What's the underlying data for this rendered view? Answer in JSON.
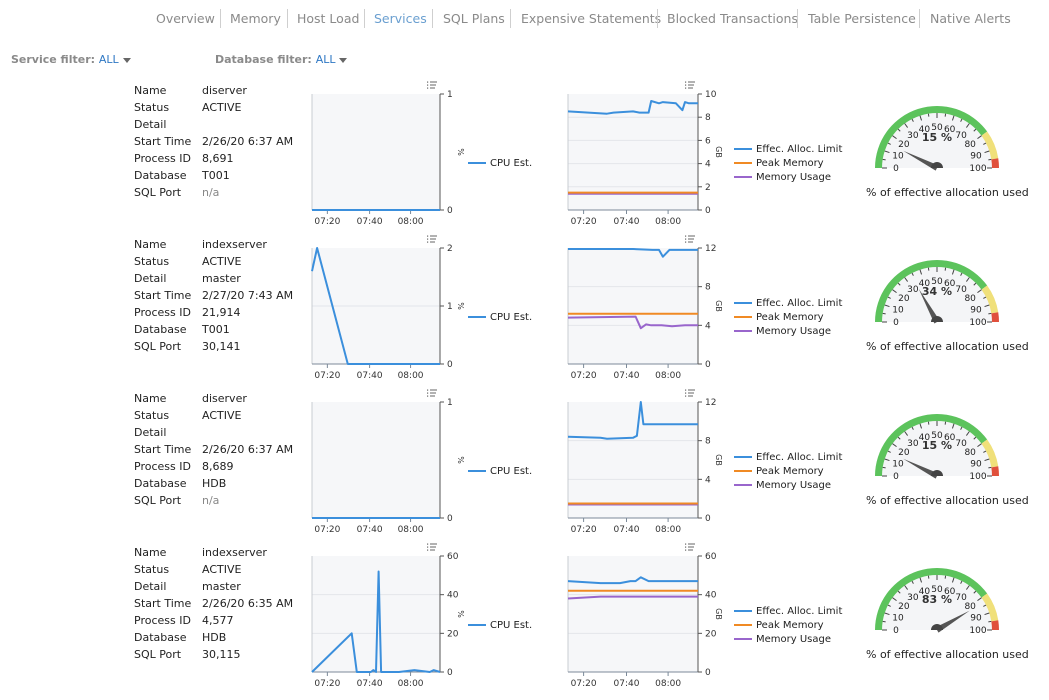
{
  "tabs": [
    {
      "label": "Overview",
      "active": false
    },
    {
      "label": "Memory",
      "active": false
    },
    {
      "label": "Host Load",
      "active": false
    },
    {
      "label": "Services",
      "active": true
    },
    {
      "label": "SQL Plans",
      "active": false
    },
    {
      "label": "Expensive Statements",
      "active": false
    },
    {
      "label": "Blocked Transactions",
      "active": false
    },
    {
      "label": "Table Persistence",
      "active": false
    },
    {
      "label": "Native Alerts",
      "active": false
    }
  ],
  "filters": {
    "service": {
      "label": "Service filter:",
      "value": "ALL"
    },
    "database": {
      "label": "Database filter:",
      "value": "ALL"
    }
  },
  "field_labels": {
    "name": "Name",
    "status": "Status",
    "detail": "Detail",
    "start_time": "Start Time",
    "process_id": "Process ID",
    "database": "Database",
    "sql_port": "SQL Port"
  },
  "legend": {
    "cpu": "CPU Est.",
    "alloc": "Effec. Alloc. Limit",
    "peak": "Peak Memory",
    "usage": "Memory Usage"
  },
  "units": {
    "cpu": "%",
    "mem": "GB"
  },
  "gauge_caption": "% of effective allocation used",
  "colors": {
    "cpu_line": "#3b8fdc",
    "alloc_line": "#3b8fdc",
    "peak_line": "#f08a24",
    "usage_line": "#9966cc",
    "gauge_green": "#5cc35c",
    "gauge_yellow": "#f0e07a",
    "gauge_red": "#e0503c",
    "tab_active": "#6a9fd0",
    "filter_value": "#2f78c4"
  },
  "services": [
    {
      "info": {
        "name": "diserver",
        "status": "ACTIVE",
        "detail": "",
        "start_time": "2/26/20 6:37 AM",
        "process_id": "8,691",
        "database": "T001",
        "sql_port": "n/a"
      },
      "cpu_chart": {
        "type": "line",
        "x_ticks": [
          "07:20",
          "07:40",
          "08:00"
        ],
        "y_ticks": [
          "0",
          "1"
        ],
        "ylim": [
          0,
          1
        ],
        "series": [
          {
            "name": "CPU Est.",
            "x": [
              0,
              100
            ],
            "y": [
              0,
              0
            ]
          }
        ]
      },
      "mem_chart": {
        "type": "line",
        "x_ticks": [
          "07:20",
          "07:40",
          "08:00"
        ],
        "y_ticks": [
          "0",
          "2",
          "4",
          "6",
          "8",
          "10"
        ],
        "ylim": [
          0,
          10
        ],
        "series": [
          {
            "name": "Effec. Alloc. Limit",
            "x": [
              0,
              30,
              35,
              50,
              55,
              62,
              64,
              70,
              73,
              83,
              88,
              90,
              93,
              100
            ],
            "y": [
              8.5,
              8.3,
              8.4,
              8.5,
              8.4,
              8.4,
              9.4,
              9.2,
              9.3,
              9.2,
              8.6,
              9.3,
              9.2,
              9.2
            ]
          },
          {
            "name": "Peak Memory",
            "x": [
              0,
              100
            ],
            "y": [
              1.5,
              1.5
            ]
          },
          {
            "name": "Memory Usage",
            "x": [
              0,
              100
            ],
            "y": [
              1.4,
              1.4
            ]
          }
        ]
      },
      "gauge": {
        "value": 15,
        "label": "15 %"
      }
    },
    {
      "info": {
        "name": "indexserver",
        "status": "ACTIVE",
        "detail": "master",
        "start_time": "2/27/20 7:43 AM",
        "process_id": "21,914",
        "database": "T001",
        "sql_port": "30,141"
      },
      "cpu_chart": {
        "type": "line",
        "x_ticks": [
          "07:20",
          "07:40",
          "08:00"
        ],
        "y_ticks": [
          "0",
          "1",
          "2"
        ],
        "ylim": [
          0,
          2
        ],
        "series": [
          {
            "name": "CPU Est.",
            "x": [
              0,
              4,
              28,
              100
            ],
            "y": [
              1.6,
              2.0,
              0,
              0
            ]
          }
        ]
      },
      "mem_chart": {
        "type": "line",
        "x_ticks": [
          "07:20",
          "07:40",
          "08:00"
        ],
        "y_ticks": [
          "0",
          "4",
          "8",
          "12"
        ],
        "ylim": [
          0,
          12
        ],
        "series": [
          {
            "name": "Effec. Alloc. Limit",
            "x": [
              0,
              50,
              65,
              70,
              73,
              78,
              83,
              90,
              100
            ],
            "y": [
              11.9,
              11.9,
              11.8,
              11.8,
              11.1,
              11.8,
              11.8,
              11.8,
              11.8
            ]
          },
          {
            "name": "Peak Memory",
            "x": [
              0,
              100
            ],
            "y": [
              5.2,
              5.2
            ]
          },
          {
            "name": "Memory Usage",
            "x": [
              0,
              52,
              56,
              60,
              64,
              72,
              80,
              90,
              100
            ],
            "y": [
              4.8,
              4.9,
              3.7,
              4.1,
              4.0,
              4.0,
              3.9,
              4.0,
              4.0
            ]
          }
        ]
      },
      "gauge": {
        "value": 34,
        "label": "34 %"
      }
    },
    {
      "info": {
        "name": "diserver",
        "status": "ACTIVE",
        "detail": "",
        "start_time": "2/26/20 6:37 AM",
        "process_id": "8,689",
        "database": "HDB",
        "sql_port": "n/a"
      },
      "cpu_chart": {
        "type": "line",
        "x_ticks": [
          "07:20",
          "07:40",
          "08:00"
        ],
        "y_ticks": [
          "0",
          "1"
        ],
        "ylim": [
          0,
          1
        ],
        "series": [
          {
            "name": "CPU Est.",
            "x": [
              0,
              100
            ],
            "y": [
              0,
              0
            ]
          }
        ]
      },
      "mem_chart": {
        "type": "line",
        "x_ticks": [
          "07:20",
          "07:40",
          "08:00"
        ],
        "y_ticks": [
          "0",
          "4",
          "8",
          "12"
        ],
        "ylim": [
          0,
          12
        ],
        "series": [
          {
            "name": "Effec. Alloc. Limit",
            "x": [
              0,
              25,
              30,
              50,
              53,
              56,
              58,
              70,
              100
            ],
            "y": [
              8.4,
              8.3,
              8.2,
              8.3,
              8.5,
              12.0,
              9.7,
              9.7,
              9.7
            ]
          },
          {
            "name": "Peak Memory",
            "x": [
              0,
              100
            ],
            "y": [
              1.5,
              1.5
            ]
          },
          {
            "name": "Memory Usage",
            "x": [
              0,
              100
            ],
            "y": [
              1.4,
              1.4
            ]
          }
        ]
      },
      "gauge": {
        "value": 15,
        "label": "15 %"
      }
    },
    {
      "info": {
        "name": "indexserver",
        "status": "ACTIVE",
        "detail": "master",
        "start_time": "2/26/20 6:35 AM",
        "process_id": "4,577",
        "database": "HDB",
        "sql_port": "30,115"
      },
      "cpu_chart": {
        "type": "line",
        "x_ticks": [
          "07:20",
          "07:40",
          "08:00"
        ],
        "y_ticks": [
          "0",
          "20",
          "40",
          "60"
        ],
        "ylim": [
          0,
          60
        ],
        "series": [
          {
            "name": "CPU Est.",
            "x": [
              0,
              31,
              35,
              46,
              48,
              50,
              52,
              54,
              56,
              68,
              80,
              92,
              95,
              100
            ],
            "y": [
              0,
              20,
              0,
              0,
              1,
              0,
              52,
              0,
              0,
              0,
              1,
              0,
              1,
              0
            ]
          }
        ]
      },
      "mem_chart": {
        "type": "line",
        "x_ticks": [
          "07:20",
          "07:40",
          "08:00"
        ],
        "y_ticks": [
          "0",
          "20",
          "40",
          "60"
        ],
        "ylim": [
          0,
          60
        ],
        "series": [
          {
            "name": "Effec. Alloc. Limit",
            "x": [
              0,
              25,
              40,
              48,
              52,
              56,
              62,
              70,
              100
            ],
            "y": [
              47,
              46,
              46,
              47,
              47,
              49,
              47,
              47,
              47
            ]
          },
          {
            "name": "Peak Memory",
            "x": [
              0,
              100
            ],
            "y": [
              42,
              42
            ]
          },
          {
            "name": "Memory Usage",
            "x": [
              0,
              25,
              40,
              50,
              60,
              75,
              100
            ],
            "y": [
              38,
              39,
              39,
              39,
              39,
              39,
              39
            ]
          }
        ]
      },
      "gauge": {
        "value": 83,
        "label": "83 %"
      }
    }
  ]
}
